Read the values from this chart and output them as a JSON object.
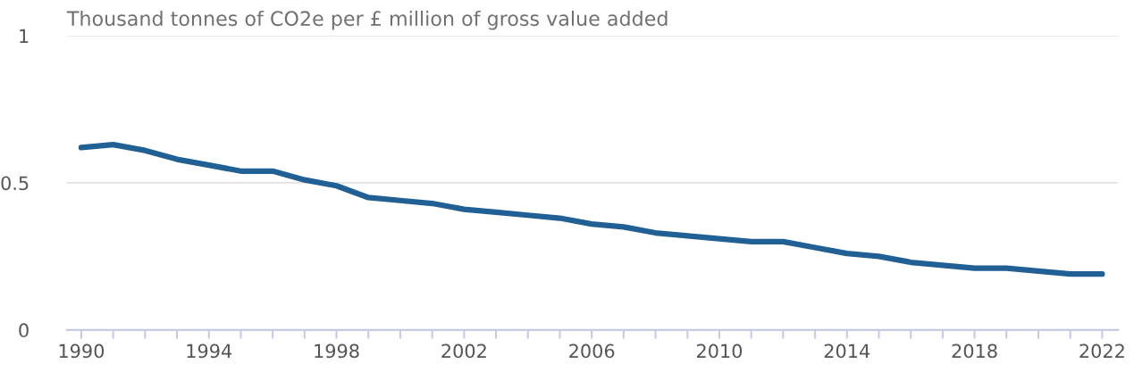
{
  "chart_data": {
    "type": "line",
    "title": "Thousand tonnes of CO2e per £ million of gross value added",
    "x": [
      1990,
      1991,
      1992,
      1993,
      1994,
      1995,
      1996,
      1997,
      1998,
      1999,
      2000,
      2001,
      2002,
      2003,
      2004,
      2005,
      2006,
      2007,
      2008,
      2009,
      2010,
      2011,
      2012,
      2013,
      2014,
      2015,
      2016,
      2017,
      2018,
      2019,
      2020,
      2021,
      2022
    ],
    "series": [
      {
        "color": "#206095",
        "values": [
          0.62,
          0.63,
          0.61,
          0.58,
          0.56,
          0.54,
          0.54,
          0.51,
          0.49,
          0.45,
          0.44,
          0.43,
          0.41,
          0.4,
          0.39,
          0.38,
          0.36,
          0.35,
          0.33,
          0.32,
          0.31,
          0.3,
          0.3,
          0.28,
          0.26,
          0.25,
          0.23,
          0.22,
          0.21,
          0.21,
          0.2,
          0.19,
          0.19
        ]
      }
    ],
    "xlim": [
      1989.55,
      2022.5
    ],
    "ylim": [
      0,
      1
    ],
    "yticks": [
      0,
      0.5,
      1
    ],
    "xticks": [
      1990,
      {
        "value": 1991,
        "label": null
      },
      {
        "value": 1992,
        "label": null
      },
      {
        "value": 1993,
        "label": null
      },
      1994,
      {
        "value": 1995,
        "label": null
      },
      {
        "value": 1996,
        "label": null
      },
      {
        "value": 1997,
        "label": null
      },
      1998,
      {
        "value": 1999,
        "label": null
      },
      {
        "value": 2000,
        "label": null
      },
      {
        "value": 2001,
        "label": null
      },
      2002,
      {
        "value": 2003,
        "label": null
      },
      {
        "value": 2004,
        "label": null
      },
      {
        "value": 2005,
        "label": null
      },
      2006,
      {
        "value": 2007,
        "label": null
      },
      {
        "value": 2008,
        "label": null
      },
      {
        "value": 2009,
        "label": null
      },
      2010,
      {
        "value": 2011,
        "label": null
      },
      {
        "value": 2012,
        "label": null
      },
      {
        "value": 2013,
        "label": null
      },
      2014,
      {
        "value": 2015,
        "label": null
      },
      {
        "value": 2016,
        "label": null
      },
      {
        "value": 2017,
        "label": null
      },
      2018,
      {
        "value": 2019,
        "label": null
      },
      {
        "value": 2020,
        "label": null
      },
      {
        "value": 2021,
        "label": null
      },
      2022
    ],
    "grid": "y",
    "marker": "none",
    "line_style": "solid"
  }
}
